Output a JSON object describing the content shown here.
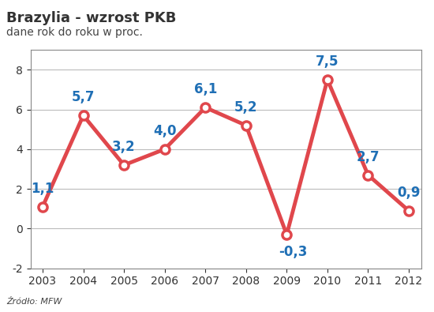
{
  "chart_data": {
    "type": "line",
    "title": "Brazylia - wzrost PKB",
    "subtitle": "dane rok do roku w proc.",
    "source": "Źródło: MFW",
    "categories": [
      "2003",
      "2004",
      "2005",
      "2006",
      "2007",
      "2008",
      "2009",
      "2010",
      "2011",
      "2012"
    ],
    "values": [
      1.1,
      5.7,
      3.2,
      4.0,
      6.1,
      5.2,
      -0.3,
      7.5,
      2.7,
      0.9
    ],
    "value_labels": [
      "1,1",
      "5,7",
      "3,2",
      "4,0",
      "6,1",
      "5,2",
      "-0,3",
      "7,5",
      "2,7",
      "0,9"
    ],
    "data_labels": true,
    "color": "#e0474c",
    "marker": "o",
    "line_style": "solid",
    "ylim": [
      -2,
      9
    ],
    "yticks": [
      -2,
      0,
      2,
      4,
      6,
      8
    ],
    "grid": true
  }
}
